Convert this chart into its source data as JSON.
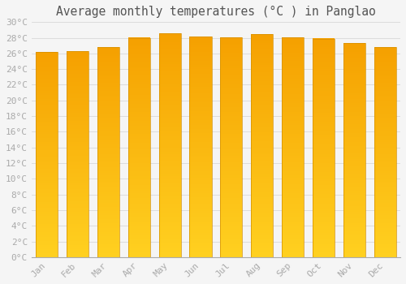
{
  "title": "Average monthly temperatures (°C ) in Panglao",
  "months": [
    "Jan",
    "Feb",
    "Mar",
    "Apr",
    "May",
    "Jun",
    "Jul",
    "Aug",
    "Sep",
    "Oct",
    "Nov",
    "Dec"
  ],
  "temperatures": [
    26.2,
    26.3,
    26.8,
    28.0,
    28.6,
    28.2,
    28.1,
    28.5,
    28.1,
    27.9,
    27.3,
    26.8
  ],
  "bar_color_bottom": "#FFD020",
  "bar_color_top": "#F5A000",
  "bar_edge_color": "#D49000",
  "background_color": "#f5f5f5",
  "grid_color": "#d8d8d8",
  "ytick_step": 2,
  "ymin": 0,
  "ymax": 30,
  "title_fontsize": 10.5,
  "tick_fontsize": 8,
  "tick_color": "#aaaaaa",
  "title_color": "#555555"
}
